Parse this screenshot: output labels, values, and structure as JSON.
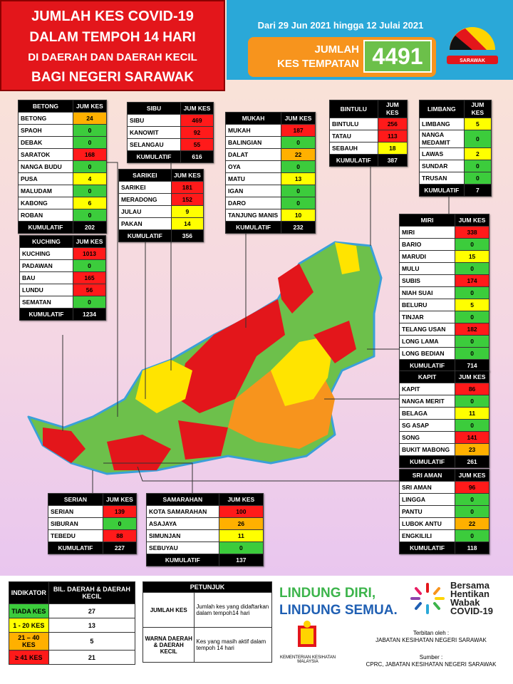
{
  "header": {
    "title_lines": [
      "JUMLAH KES COVID-19",
      "DALAM TEMPOH 14 HARI",
      "DI DAERAH DAN DAERAH KECIL",
      "BAGI NEGERI SARAWAK"
    ],
    "date_range": "Dari 29 Jun 2021 hingga 12 Julai 2021",
    "total_label_lines": [
      "JUMLAH",
      "KES TEMPATAN"
    ],
    "total_value": "4491",
    "flag_label": "SARAWAK"
  },
  "tables": [
    {
      "title": "BETONG",
      "col": "JUM KES",
      "rows": [
        [
          "BETONG",
          24
        ],
        [
          "SPAOH",
          0
        ],
        [
          "DEBAK",
          0
        ],
        [
          "SARATOK",
          168
        ],
        [
          "NANGA BUDU",
          0
        ],
        [
          "PUSA",
          4
        ],
        [
          "MALUDAM",
          0
        ],
        [
          "KABONG",
          6
        ],
        [
          "ROBAN",
          0
        ]
      ],
      "total_label": "KUMULATIF",
      "total": 202
    },
    {
      "title": "SIBU",
      "col": "JUM KES",
      "rows": [
        [
          "SIBU",
          469
        ],
        [
          "KANOWIT",
          92
        ],
        [
          "SELANGAU",
          55
        ]
      ],
      "total_label": "KUMULATIF",
      "total": 616
    },
    {
      "title": "MUKAH",
      "col": "JUM KES",
      "rows": [
        [
          "MUKAH",
          187
        ],
        [
          "BALINGIAN",
          0
        ],
        [
          "DALAT",
          22
        ],
        [
          "OYA",
          0
        ],
        [
          "MATU",
          13
        ],
        [
          "IGAN",
          0
        ],
        [
          "DARO",
          0
        ],
        [
          "TANJUNG MANIS",
          10
        ]
      ],
      "total_label": "KUMULATIF",
      "total": 232
    },
    {
      "title": "BINTULU",
      "col": "JUM KES",
      "rows": [
        [
          "BINTULU",
          256
        ],
        [
          "TATAU",
          113
        ],
        [
          "SEBAUH",
          18
        ]
      ],
      "total_label": "KUMULATIF",
      "total": 387
    },
    {
      "title": "LIMBANG",
      "col": "JUM KES",
      "rows": [
        [
          "LIMBANG",
          5
        ],
        [
          "NANGA MEDAMIT",
          0
        ],
        [
          "LAWAS",
          2
        ],
        [
          "SUNDAR",
          0
        ],
        [
          "TRUSAN",
          0
        ]
      ],
      "total_label": "KUMULATIF",
      "total": 7
    },
    {
      "title": "SARIKEI",
      "col": "JUM KES",
      "rows": [
        [
          "SARIKEI",
          181
        ],
        [
          "MERADONG",
          152
        ],
        [
          "JULAU",
          9
        ],
        [
          "PAKAN",
          14
        ]
      ],
      "total_label": "KUMULATIF",
      "total": 356
    },
    {
      "title": "KUCHING",
      "col": "JUM KES",
      "rows": [
        [
          "KUCHING",
          1013
        ],
        [
          "PADAWAN",
          0
        ],
        [
          "BAU",
          165
        ],
        [
          "LUNDU",
          56
        ],
        [
          "SEMATAN",
          0
        ]
      ],
      "total_label": "KUMULATIF",
      "total": 1234
    },
    {
      "title": "MIRI",
      "col": "JUM KES",
      "rows": [
        [
          "MIRI",
          338
        ],
        [
          "BARIO",
          0
        ],
        [
          "MARUDI",
          15
        ],
        [
          "MULU",
          0
        ],
        [
          "SUBIS",
          174
        ],
        [
          "NIAH SUAI",
          0
        ],
        [
          "BELURU",
          5
        ],
        [
          "TINJAR",
          0
        ],
        [
          "TELANG USAN",
          182
        ],
        [
          "LONG LAMA",
          0
        ],
        [
          "LONG BEDIAN",
          0
        ]
      ],
      "total_label": "KUMULATIF",
      "total": 714
    },
    {
      "title": "KAPIT",
      "col": "JUM KES",
      "rows": [
        [
          "KAPIT",
          86
        ],
        [
          "NANGA MERIT",
          0
        ],
        [
          "BELAGA",
          11
        ],
        [
          "SG ASAP",
          0
        ],
        [
          "SONG",
          141
        ],
        [
          "BUKIT MABONG",
          23
        ]
      ],
      "total_label": "KUMULATIF",
      "total": 261
    },
    {
      "title": "SRI AMAN",
      "col": "JUM KES",
      "rows": [
        [
          "SRI AMAN",
          96
        ],
        [
          "LINGGA",
          0
        ],
        [
          "PANTU",
          0
        ],
        [
          "LUBOK ANTU",
          22
        ],
        [
          "ENGKILILI",
          0
        ]
      ],
      "total_label": "KUMULATIF",
      "total": 118
    },
    {
      "title": "SERIAN",
      "col": "JUM KES",
      "rows": [
        [
          "SERIAN",
          139
        ],
        [
          "SIBURAN",
          0
        ],
        [
          "TEBEDU",
          88
        ]
      ],
      "total_label": "KUMULATIF",
      "total": 227
    },
    {
      "title": "SAMARAHAN",
      "col": "JUM KES",
      "rows": [
        [
          "KOTA SAMARAHAN",
          100
        ],
        [
          "ASAJAYA",
          26
        ],
        [
          "SIMUNJAN",
          11
        ],
        [
          "SEBUYAU",
          0
        ]
      ],
      "total_label": "KUMULATIF",
      "total": 137
    }
  ],
  "legend": {
    "headers": [
      "INDIKATOR",
      "BIL. DAERAH & DAERAH KECIL"
    ],
    "rows": [
      [
        "TIADA KES",
        27
      ],
      [
        "1 - 20 KES",
        13
      ],
      [
        "21 – 40 KES",
        5
      ],
      [
        "≥ 41 KES",
        21
      ]
    ]
  },
  "petunjuk": {
    "title": "PETUNJUK",
    "rows": [
      [
        "JUMLAH KES",
        "Jumlah kes yang didaftarkan dalam tempoh14 hari"
      ],
      [
        "WARNA DAERAH & DAERAH KECIL",
        "Kes yang masih aktif dalam tempoh 14 hari"
      ]
    ]
  },
  "slogan": [
    "LINDUNG DIRI,",
    "LINDUNG SEMUA."
  ],
  "campaign": [
    "Bersama",
    "Hentikan",
    "Wabak",
    "COVID-19"
  ],
  "ministry": "KEMENTERIAN KESIHATAN MALAYSIA",
  "publisher_label": "Terbitan oleh :",
  "publisher": "JABATAN KESIHATAN NEGERI SARAWAK",
  "source_label": "Sumber :",
  "source": "CPRC, JABATAN KESIHATAN NEGERI SARAWAK"
}
